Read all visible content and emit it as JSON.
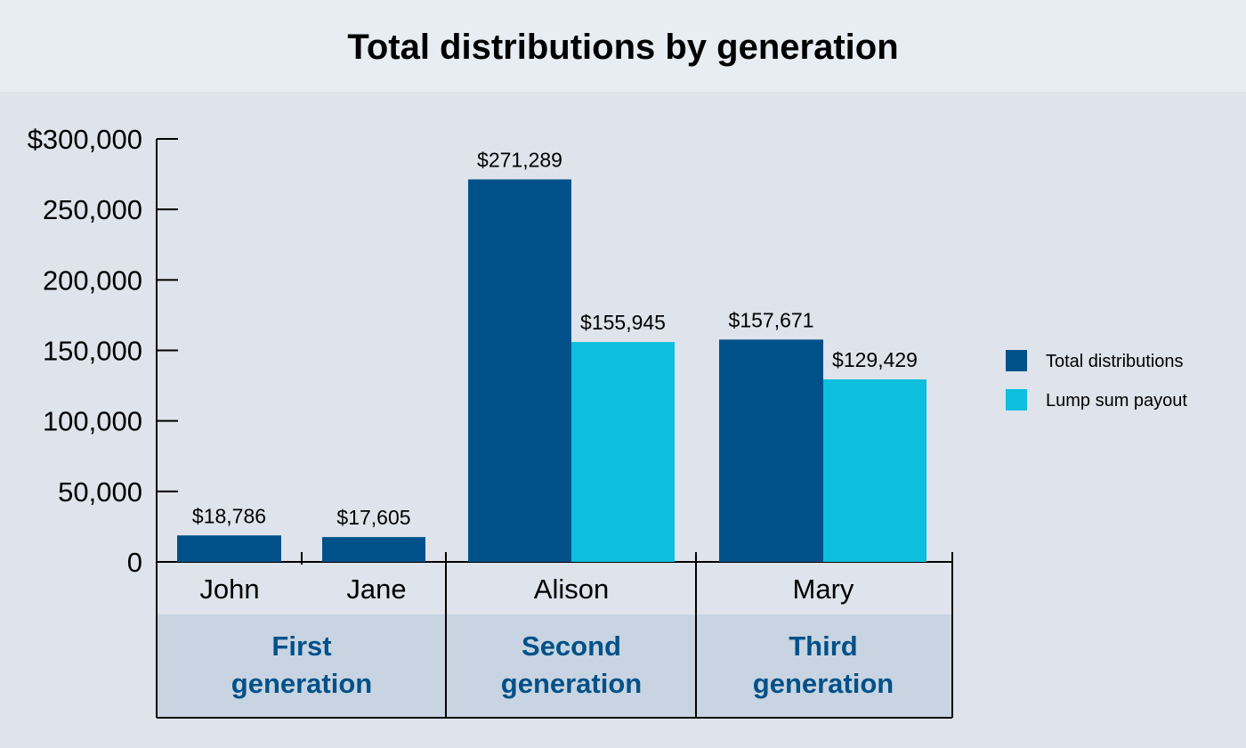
{
  "chart_data": {
    "type": "bar",
    "title": "Total distributions by generation",
    "xlabel": "",
    "ylabel": "",
    "ylim": [
      0,
      300000
    ],
    "yticks": [
      {
        "value": 0,
        "label": "0"
      },
      {
        "value": 50000,
        "label": "50,000"
      },
      {
        "value": 100000,
        "label": "100,000"
      },
      {
        "value": 150000,
        "label": "150,000"
      },
      {
        "value": 200000,
        "label": "200,000"
      },
      {
        "value": 250000,
        "label": "250,000"
      },
      {
        "value": 300000,
        "label": "$300,000"
      }
    ],
    "categories": [
      "John",
      "Jane",
      "Alison",
      "Mary"
    ],
    "groups": [
      {
        "label_line1": "First",
        "label_line2": "generation",
        "members": [
          "John",
          "Jane"
        ]
      },
      {
        "label_line1": "Second",
        "label_line2": "generation",
        "members": [
          "Alison"
        ]
      },
      {
        "label_line1": "Third",
        "label_line2": "generation",
        "members": [
          "Mary"
        ]
      }
    ],
    "series": [
      {
        "name": "Total distributions",
        "color": "#005189",
        "values": [
          18786,
          17605,
          271289,
          157671
        ],
        "labels": [
          "$18,786",
          "$17,605",
          "$271,289",
          "$157,671"
        ]
      },
      {
        "name": "Lump sum payout",
        "color": "#0dbfdd",
        "values": [
          null,
          null,
          155945,
          129429
        ],
        "labels": [
          null,
          null,
          "$155,945",
          "$129,429"
        ]
      }
    ],
    "legend_position": "right",
    "grid": false
  }
}
